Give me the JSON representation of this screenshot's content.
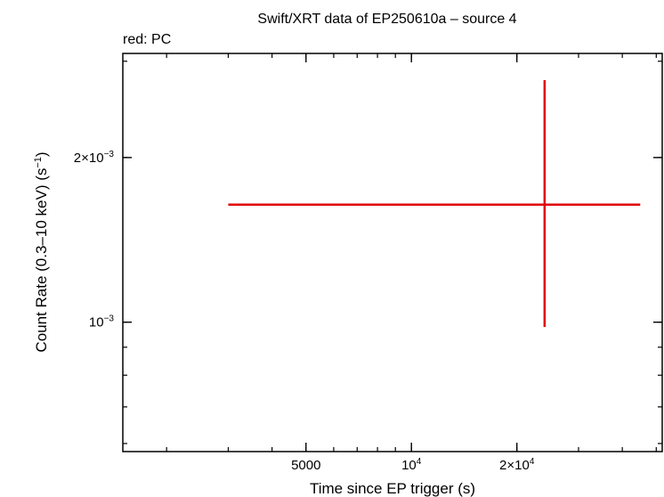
{
  "chart_data": {
    "type": "scatter",
    "title": "Swift/XRT data of EP250610a – source 4",
    "legend_text": "red: PC",
    "xlabel": "Time since EP trigger (s)",
    "ylabel_main": "Count Rate (0.3–10 keV) (s",
    "ylabel_sup": "−1",
    "ylabel_close": ")",
    "x_scale": "log",
    "y_scale": "log",
    "xlim": [
      1500,
      52000
    ],
    "ylim": [
      0.00058,
      0.0031
    ],
    "x_ticks": [
      {
        "value": 5000,
        "label": "5000",
        "sup": ""
      },
      {
        "value": 10000,
        "label": "10",
        "sup": "4"
      },
      {
        "value": 20000,
        "label": "2×10",
        "sup": "4"
      }
    ],
    "y_ticks": [
      {
        "value": 0.001,
        "label": "10",
        "sup": "−3"
      },
      {
        "value": 0.002,
        "label": "2×10",
        "sup": "−3"
      }
    ],
    "series": [
      {
        "color": "#e00000",
        "points": [
          {
            "x": 24000,
            "x_low": 3000,
            "x_high": 45000,
            "y": 0.00164,
            "y_low": 0.00098,
            "y_high": 0.00277
          }
        ]
      }
    ]
  }
}
